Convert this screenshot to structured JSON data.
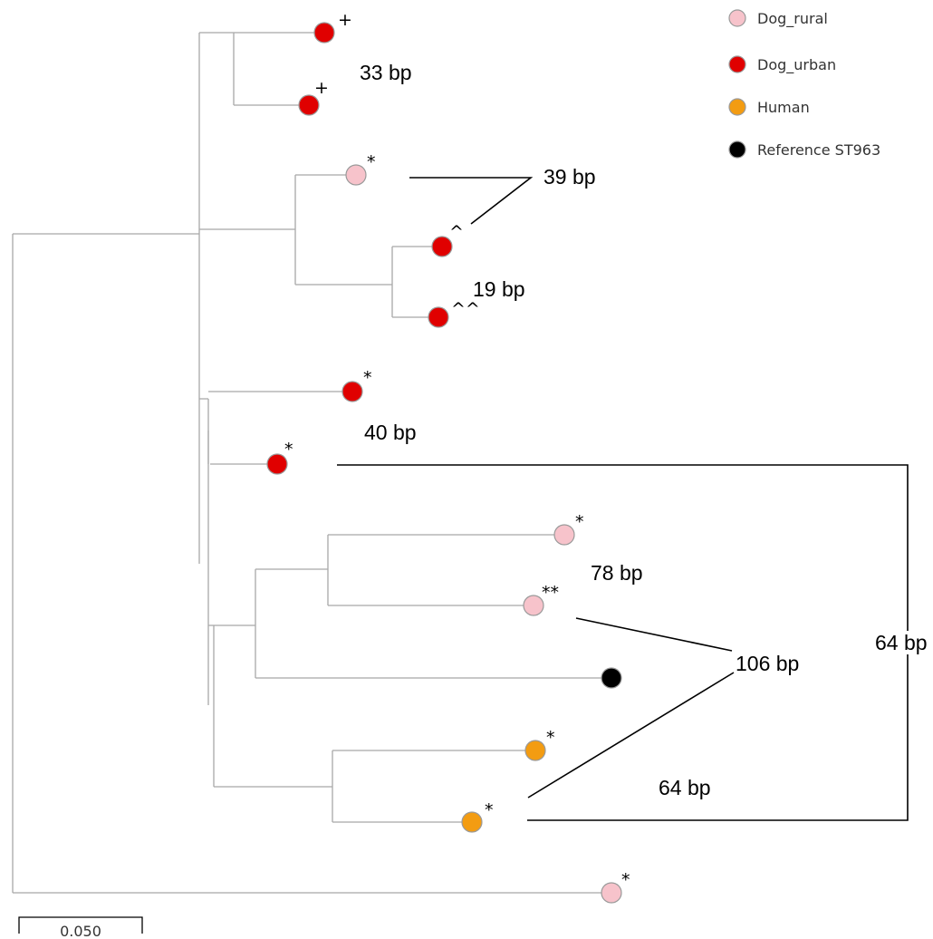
{
  "colors": {
    "Dog_rural": "#f7c3cb",
    "Dog_urban": "#e00000",
    "Human": "#f39c12",
    "Reference ST963": "#000000"
  },
  "legend": [
    {
      "label": "Dog_rural"
    },
    {
      "label": "Dog_urban"
    },
    {
      "label": "Human"
    },
    {
      "label": "Reference ST963"
    }
  ],
  "tips": [
    {
      "group": "Dog_urban",
      "mark": "+"
    },
    {
      "group": "Dog_urban",
      "mark": "+"
    },
    {
      "group": "Dog_rural",
      "mark": "*"
    },
    {
      "group": "Dog_urban",
      "mark": "^"
    },
    {
      "group": "Dog_urban",
      "mark": "^^"
    },
    {
      "group": "Dog_urban",
      "mark": "*"
    },
    {
      "group": "Dog_urban",
      "mark": "*"
    },
    {
      "group": "Dog_rural",
      "mark": "*"
    },
    {
      "group": "Dog_rural",
      "mark": "**"
    },
    {
      "group": "Reference ST963",
      "mark": ""
    },
    {
      "group": "Human",
      "mark": "*"
    },
    {
      "group": "Human",
      "mark": "*"
    },
    {
      "group": "Dog_rural",
      "mark": "*"
    }
  ],
  "distances": [
    {
      "label": "33 bp"
    },
    {
      "label": "39 bp"
    },
    {
      "label": "19 bp"
    },
    {
      "label": "40 bp"
    },
    {
      "label": "78 bp"
    },
    {
      "label": "106 bp"
    },
    {
      "label": "64 bp"
    },
    {
      "label": "64 bp"
    }
  ],
  "scale_bar": {
    "label": "0.050"
  }
}
